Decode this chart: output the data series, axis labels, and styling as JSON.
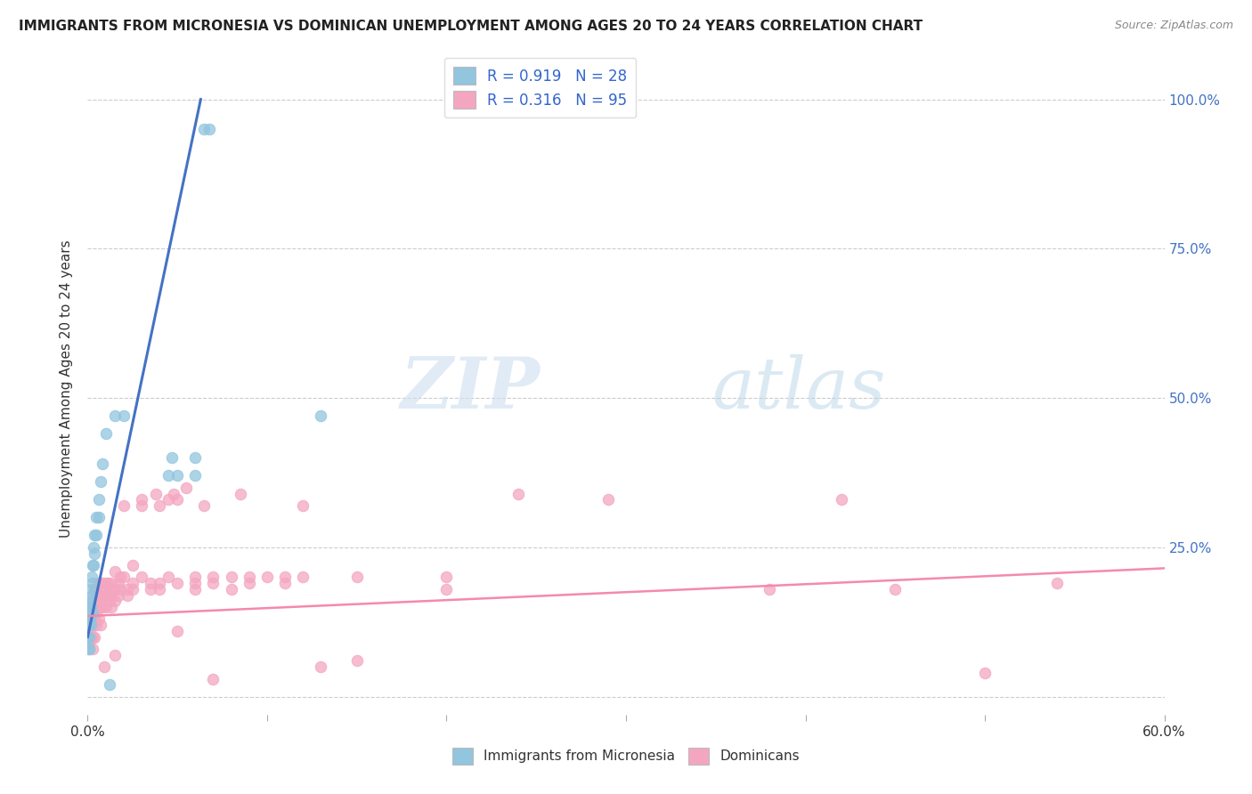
{
  "title": "IMMIGRANTS FROM MICRONESIA VS DOMINICAN UNEMPLOYMENT AMONG AGES 20 TO 24 YEARS CORRELATION CHART",
  "source": "Source: ZipAtlas.com",
  "ylabel": "Unemployment Among Ages 20 to 24 years",
  "yticks": [
    0.0,
    0.25,
    0.5,
    0.75,
    1.0
  ],
  "ytick_labels": [
    "",
    "25.0%",
    "50.0%",
    "75.0%",
    "100.0%"
  ],
  "xmin": 0.0,
  "xmax": 0.6,
  "ymin": -0.03,
  "ymax": 1.06,
  "blue_color": "#92c5de",
  "pink_color": "#f4a6c0",
  "blue_line_color": "#4472c4",
  "pink_line_color": "#f48aaa",
  "blue_scatter": [
    [
      0.0005,
      0.14
    ],
    [
      0.0005,
      0.1
    ],
    [
      0.0007,
      0.12
    ],
    [
      0.0007,
      0.08
    ],
    [
      0.001,
      0.15
    ],
    [
      0.001,
      0.13
    ],
    [
      0.001,
      0.1
    ],
    [
      0.001,
      0.08
    ],
    [
      0.0015,
      0.16
    ],
    [
      0.0015,
      0.13
    ],
    [
      0.002,
      0.18
    ],
    [
      0.002,
      0.15
    ],
    [
      0.002,
      0.12
    ],
    [
      0.0025,
      0.2
    ],
    [
      0.0025,
      0.17
    ],
    [
      0.003,
      0.22
    ],
    [
      0.003,
      0.19
    ],
    [
      0.003,
      0.14
    ],
    [
      0.0035,
      0.25
    ],
    [
      0.0035,
      0.22
    ],
    [
      0.004,
      0.27
    ],
    [
      0.004,
      0.24
    ],
    [
      0.005,
      0.3
    ],
    [
      0.005,
      0.27
    ],
    [
      0.006,
      0.33
    ],
    [
      0.006,
      0.3
    ],
    [
      0.007,
      0.36
    ],
    [
      0.008,
      0.39
    ],
    [
      0.01,
      0.44
    ],
    [
      0.012,
      0.02
    ],
    [
      0.015,
      0.47
    ],
    [
      0.02,
      0.47
    ],
    [
      0.13,
      0.47
    ],
    [
      0.045,
      0.37
    ],
    [
      0.047,
      0.4
    ],
    [
      0.05,
      0.37
    ],
    [
      0.06,
      0.4
    ],
    [
      0.06,
      0.37
    ],
    [
      0.065,
      0.95
    ],
    [
      0.068,
      0.95
    ]
  ],
  "pink_scatter": [
    [
      0.0005,
      0.14
    ],
    [
      0.001,
      0.12
    ],
    [
      0.001,
      0.1
    ],
    [
      0.001,
      0.09
    ],
    [
      0.0015,
      0.14
    ],
    [
      0.0015,
      0.11
    ],
    [
      0.002,
      0.15
    ],
    [
      0.002,
      0.12
    ],
    [
      0.002,
      0.1
    ],
    [
      0.0025,
      0.14
    ],
    [
      0.0025,
      0.12
    ],
    [
      0.003,
      0.16
    ],
    [
      0.003,
      0.14
    ],
    [
      0.003,
      0.12
    ],
    [
      0.003,
      0.1
    ],
    [
      0.003,
      0.08
    ],
    [
      0.004,
      0.18
    ],
    [
      0.004,
      0.15
    ],
    [
      0.004,
      0.13
    ],
    [
      0.004,
      0.1
    ],
    [
      0.005,
      0.18
    ],
    [
      0.005,
      0.16
    ],
    [
      0.005,
      0.14
    ],
    [
      0.005,
      0.12
    ],
    [
      0.006,
      0.19
    ],
    [
      0.006,
      0.17
    ],
    [
      0.006,
      0.15
    ],
    [
      0.006,
      0.13
    ],
    [
      0.007,
      0.19
    ],
    [
      0.007,
      0.17
    ],
    [
      0.007,
      0.15
    ],
    [
      0.007,
      0.12
    ],
    [
      0.008,
      0.19
    ],
    [
      0.008,
      0.17
    ],
    [
      0.008,
      0.15
    ],
    [
      0.009,
      0.18
    ],
    [
      0.009,
      0.05
    ],
    [
      0.01,
      0.19
    ],
    [
      0.01,
      0.17
    ],
    [
      0.01,
      0.15
    ],
    [
      0.011,
      0.19
    ],
    [
      0.011,
      0.17
    ],
    [
      0.012,
      0.18
    ],
    [
      0.012,
      0.16
    ],
    [
      0.013,
      0.19
    ],
    [
      0.013,
      0.17
    ],
    [
      0.013,
      0.15
    ],
    [
      0.015,
      0.18
    ],
    [
      0.015,
      0.16
    ],
    [
      0.015,
      0.21
    ],
    [
      0.015,
      0.07
    ],
    [
      0.017,
      0.19
    ],
    [
      0.017,
      0.17
    ],
    [
      0.018,
      0.2
    ],
    [
      0.018,
      0.18
    ],
    [
      0.02,
      0.2
    ],
    [
      0.02,
      0.32
    ],
    [
      0.022,
      0.17
    ],
    [
      0.022,
      0.18
    ],
    [
      0.025,
      0.19
    ],
    [
      0.025,
      0.22
    ],
    [
      0.025,
      0.18
    ],
    [
      0.03,
      0.2
    ],
    [
      0.03,
      0.32
    ],
    [
      0.03,
      0.33
    ],
    [
      0.035,
      0.19
    ],
    [
      0.035,
      0.18
    ],
    [
      0.038,
      0.34
    ],
    [
      0.04,
      0.19
    ],
    [
      0.04,
      0.18
    ],
    [
      0.04,
      0.32
    ],
    [
      0.045,
      0.2
    ],
    [
      0.045,
      0.33
    ],
    [
      0.048,
      0.34
    ],
    [
      0.05,
      0.19
    ],
    [
      0.05,
      0.11
    ],
    [
      0.05,
      0.33
    ],
    [
      0.055,
      0.35
    ],
    [
      0.06,
      0.19
    ],
    [
      0.06,
      0.18
    ],
    [
      0.06,
      0.2
    ],
    [
      0.065,
      0.32
    ],
    [
      0.07,
      0.19
    ],
    [
      0.07,
      0.2
    ],
    [
      0.07,
      0.03
    ],
    [
      0.08,
      0.18
    ],
    [
      0.08,
      0.2
    ],
    [
      0.085,
      0.34
    ],
    [
      0.09,
      0.2
    ],
    [
      0.09,
      0.19
    ],
    [
      0.1,
      0.2
    ],
    [
      0.11,
      0.2
    ],
    [
      0.11,
      0.19
    ],
    [
      0.12,
      0.2
    ],
    [
      0.12,
      0.32
    ],
    [
      0.13,
      0.05
    ],
    [
      0.15,
      0.2
    ],
    [
      0.15,
      0.06
    ],
    [
      0.2,
      0.2
    ],
    [
      0.2,
      0.18
    ],
    [
      0.24,
      0.34
    ],
    [
      0.29,
      0.33
    ],
    [
      0.38,
      0.18
    ],
    [
      0.42,
      0.33
    ],
    [
      0.45,
      0.18
    ],
    [
      0.5,
      0.04
    ],
    [
      0.54,
      0.19
    ]
  ],
  "blue_trendline": [
    [
      0.0,
      0.1
    ],
    [
      0.063,
      1.0
    ]
  ],
  "pink_trendline": [
    [
      0.0,
      0.135
    ],
    [
      0.6,
      0.215
    ]
  ],
  "watermark_zip": "ZIP",
  "watermark_atlas": "atlas",
  "background_color": "#ffffff",
  "grid_color": "#cccccc"
}
